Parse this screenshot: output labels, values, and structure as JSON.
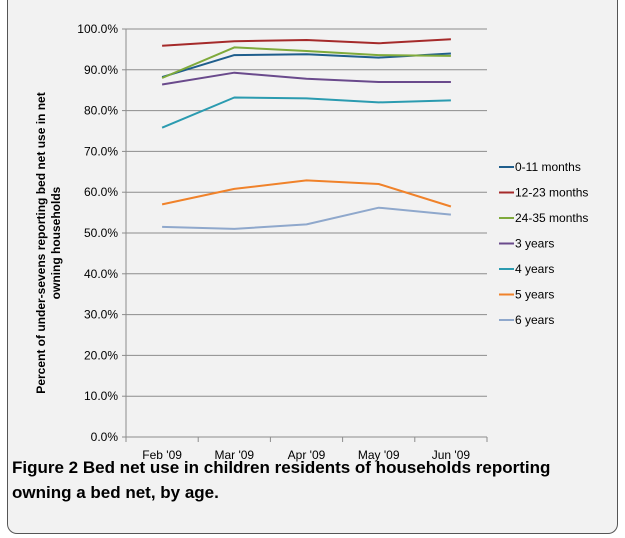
{
  "chart_data": {
    "type": "line",
    "ylabel": "Percent of under-sevens reporting bed net use in net owning households",
    "ylabel_lines": [
      "Percent of under-sevens reporting bed net use in net",
      "owning households"
    ],
    "categories": [
      "Feb '09",
      "Mar '09",
      "Apr '09",
      "May '09",
      "Jun '09"
    ],
    "ylim": [
      0,
      100
    ],
    "yticks": [
      0,
      10,
      20,
      30,
      40,
      50,
      60,
      70,
      80,
      90,
      100
    ],
    "ytick_labels": [
      "0.0%",
      "10.0%",
      "20.0%",
      "30.0%",
      "40.0%",
      "50.0%",
      "60.0%",
      "70.0%",
      "80.0%",
      "90.0%",
      "100.0%"
    ],
    "grid": true,
    "legend_position": "right",
    "series": [
      {
        "name": "0-11 months",
        "color": "#1f5e8c",
        "values": [
          88.2,
          93.6,
          93.8,
          93.0,
          94.0
        ]
      },
      {
        "name": "12-23 months",
        "color": "#a52a2a",
        "values": [
          95.9,
          97.0,
          97.3,
          96.5,
          97.5
        ]
      },
      {
        "name": "24-35 months",
        "color": "#7faa3b",
        "values": [
          88.0,
          95.5,
          94.6,
          93.6,
          93.4
        ]
      },
      {
        "name": "3 years",
        "color": "#6a4a8c",
        "values": [
          86.4,
          89.3,
          87.8,
          87.0,
          87.0
        ]
      },
      {
        "name": "4 years",
        "color": "#2b9bb0",
        "values": [
          75.8,
          83.2,
          83.0,
          82.0,
          82.5
        ]
      },
      {
        "name": "5 years",
        "color": "#f0822a",
        "values": [
          57.0,
          60.8,
          62.9,
          62.0,
          56.5
        ]
      },
      {
        "name": "6 years",
        "color": "#8fa8cc",
        "values": [
          51.5,
          51.0,
          52.1,
          56.2,
          54.5
        ]
      }
    ]
  },
  "caption": {
    "label": "Figure 2",
    "text": " Bed net use in children residents of households reporting owning a bed net, by age."
  }
}
